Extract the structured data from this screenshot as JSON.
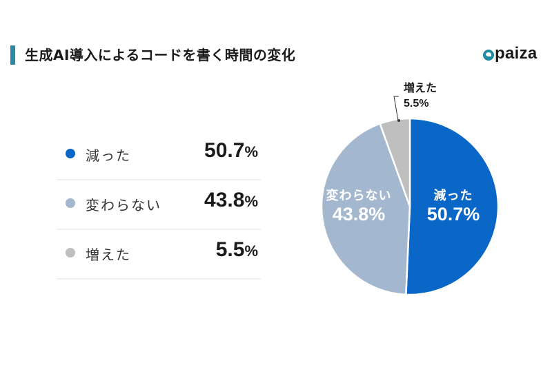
{
  "header": {
    "title": "生成AI導入によるコードを書く時間の変化",
    "accent_color": "#2a8aa6",
    "logo_text": "paiza"
  },
  "legend": [
    {
      "label": "減った",
      "value": "50.7",
      "unit": "%",
      "color": "#0a67c8"
    },
    {
      "label": "変わらない",
      "value": "43.8",
      "unit": "%",
      "color": "#a3b8cf"
    },
    {
      "label": "増えた",
      "value": "5.5",
      "unit": "%",
      "color": "#bfbfbf"
    }
  ],
  "pie_labels": {
    "decreased": {
      "label": "減った",
      "value": "50.7%"
    },
    "unchanged": {
      "label": "変わらない",
      "value": "43.8%"
    },
    "increased": {
      "label": "増えた",
      "value": "5.5%"
    }
  },
  "chart_data": {
    "type": "pie",
    "title": "生成AI導入によるコードを書く時間の変化",
    "categories": [
      "減った",
      "変わらない",
      "増えた"
    ],
    "values": [
      50.7,
      43.8,
      5.5
    ],
    "unit": "%",
    "colors": [
      "#0a67c8",
      "#a3b8cf",
      "#bfbfbf"
    ],
    "start_angle": "12 o'clock, clockwise",
    "legend_position": "left"
  }
}
